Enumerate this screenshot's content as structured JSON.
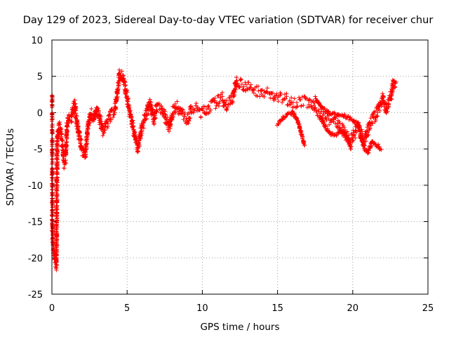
{
  "chart_data": {
    "type": "scatter",
    "title": "Day 129 of 2023, Sidereal Day-to-day VTEC variation (SDTVAR) for receiver chur",
    "xlabel": "GPS time / hours",
    "ylabel": "SDTVAR / TECUs",
    "xlim": [
      0,
      25
    ],
    "ylim": [
      -25,
      10
    ],
    "xticks": [
      0,
      5,
      10,
      15,
      20,
      25
    ],
    "yticks": [
      -25,
      -20,
      -15,
      -10,
      -5,
      0,
      5,
      10
    ],
    "grid": true,
    "marker": "+",
    "series_color": "#ff0000",
    "trend": [
      [
        0.0,
        2.5
      ],
      [
        0.02,
        -15
      ],
      [
        0.05,
        -17
      ],
      [
        0.1,
        -18.5
      ],
      [
        0.15,
        -19.5
      ],
      [
        0.2,
        -20
      ],
      [
        0.3,
        -21
      ],
      [
        0.35,
        -3.5
      ],
      [
        0.5,
        -2
      ],
      [
        0.6,
        -3
      ],
      [
        0.7,
        -4.5
      ],
      [
        0.8,
        -7
      ],
      [
        0.9,
        -6.5
      ],
      [
        1.0,
        -2
      ],
      [
        1.1,
        -1
      ],
      [
        1.3,
        -0.5
      ],
      [
        1.5,
        1
      ],
      [
        1.8,
        -3
      ],
      [
        2.0,
        -5
      ],
      [
        2.2,
        -6
      ],
      [
        2.4,
        -2
      ],
      [
        2.6,
        0
      ],
      [
        2.8,
        -1
      ],
      [
        3.0,
        0.5
      ],
      [
        3.2,
        -1
      ],
      [
        3.4,
        -2.5
      ],
      [
        4.0,
        0
      ],
      [
        4.2,
        0.5
      ],
      [
        4.5,
        5.5
      ],
      [
        4.7,
        5
      ],
      [
        4.9,
        3
      ],
      [
        5.1,
        1
      ],
      [
        5.2,
        0
      ],
      [
        5.7,
        -5
      ],
      [
        6.0,
        -2
      ],
      [
        6.3,
        0
      ],
      [
        6.5,
        1.5
      ],
      [
        6.8,
        -1
      ],
      [
        7.0,
        1
      ],
      [
        7.3,
        0.5
      ],
      [
        7.6,
        -1
      ],
      [
        7.8,
        -2
      ],
      [
        8.0,
        0
      ],
      [
        8.3,
        1
      ],
      [
        8.6,
        0
      ],
      [
        9.0,
        -1
      ],
      [
        9.3,
        0.5
      ],
      [
        9.6,
        0.5
      ],
      [
        10.0,
        0
      ],
      [
        10.3,
        0.5
      ],
      [
        10.6,
        1
      ],
      [
        11.0,
        1.5
      ],
      [
        11.3,
        2
      ],
      [
        11.6,
        1
      ],
      [
        12.0,
        2
      ],
      [
        12.3,
        4.5
      ],
      [
        12.6,
        4
      ],
      [
        13.0,
        3.5
      ],
      [
        13.5,
        3
      ],
      [
        14.0,
        3
      ],
      [
        14.5,
        2.5
      ],
      [
        15.0,
        2
      ],
      [
        15.5,
        2
      ],
      [
        16.0,
        1.5
      ],
      [
        16.5,
        1.5
      ],
      [
        17.0,
        1.5
      ],
      [
        17.5,
        0.5
      ],
      [
        18.0,
        -0.5
      ],
      [
        18.5,
        -1
      ],
      [
        19.0,
        -1.5
      ],
      [
        19.5,
        -3
      ],
      [
        19.8,
        -4
      ],
      [
        20.1,
        -3
      ],
      [
        20.4,
        -2
      ],
      [
        20.7,
        -4
      ],
      [
        21.0,
        -2.5
      ],
      [
        21.3,
        -1
      ],
      [
        21.6,
        0
      ],
      [
        21.8,
        1
      ],
      [
        22.0,
        2
      ],
      [
        22.2,
        0.5
      ],
      [
        22.5,
        2
      ],
      [
        22.7,
        4
      ],
      [
        22.9,
        4.5
      ]
    ],
    "branches": [
      [
        [
          15.0,
          -1.5
        ],
        [
          15.5,
          -0.5
        ],
        [
          16.0,
          0
        ],
        [
          16.3,
          -1
        ],
        [
          16.6,
          -3
        ],
        [
          16.8,
          -4.5
        ]
      ],
      [
        [
          17.8,
          -0.5
        ],
        [
          18.2,
          -2
        ],
        [
          18.6,
          -3
        ],
        [
          19.0,
          -3
        ],
        [
          19.3,
          -2.5
        ],
        [
          19.6,
          -3.5
        ],
        [
          19.9,
          -5
        ]
      ],
      [
        [
          20.5,
          -3
        ],
        [
          20.8,
          -5
        ],
        [
          21.0,
          -5.5
        ],
        [
          21.3,
          -4
        ],
        [
          21.6,
          -4.5
        ],
        [
          21.9,
          -5
        ]
      ],
      [
        [
          17.5,
          2
        ],
        [
          18.0,
          0.5
        ],
        [
          18.5,
          0
        ],
        [
          19.0,
          -0.5
        ],
        [
          19.5,
          -0.5
        ],
        [
          20.0,
          -1
        ],
        [
          20.5,
          -2
        ]
      ]
    ]
  }
}
